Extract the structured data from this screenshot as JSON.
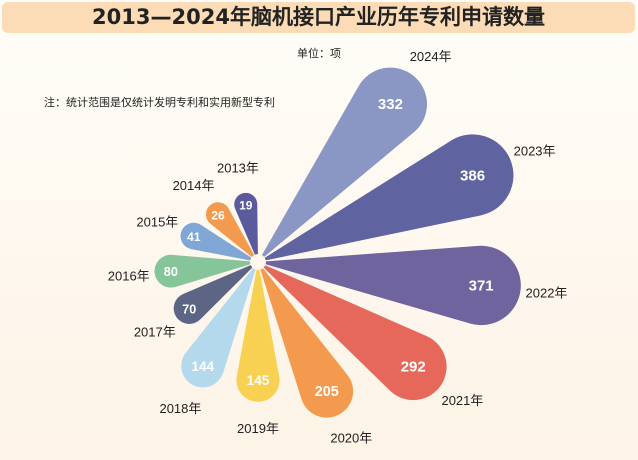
{
  "chart_data": {
    "type": "radial-bar",
    "title": "2013—2024年脑机接口产业历年专利申请数量",
    "unit": "单位：项",
    "note": "注：统计范围是仅统计发明专利和实用新型专利",
    "categories": [
      "2013年",
      "2014年",
      "2015年",
      "2016年",
      "2017年",
      "2018年",
      "2019年",
      "2020年",
      "2021年",
      "2022年",
      "2023年",
      "2024年"
    ],
    "values": [
      19,
      26,
      41,
      80,
      70,
      144,
      145,
      205,
      292,
      371,
      386,
      332
    ],
    "colors": [
      "#5a5a9c",
      "#f29a4e",
      "#7fa6d4",
      "#86c49a",
      "#5c6584",
      "#b4d9ec",
      "#f8d152",
      "#f39a4e",
      "#e5685a",
      "#6f649e",
      "#5f63a0",
      "#8a96c4"
    ]
  }
}
